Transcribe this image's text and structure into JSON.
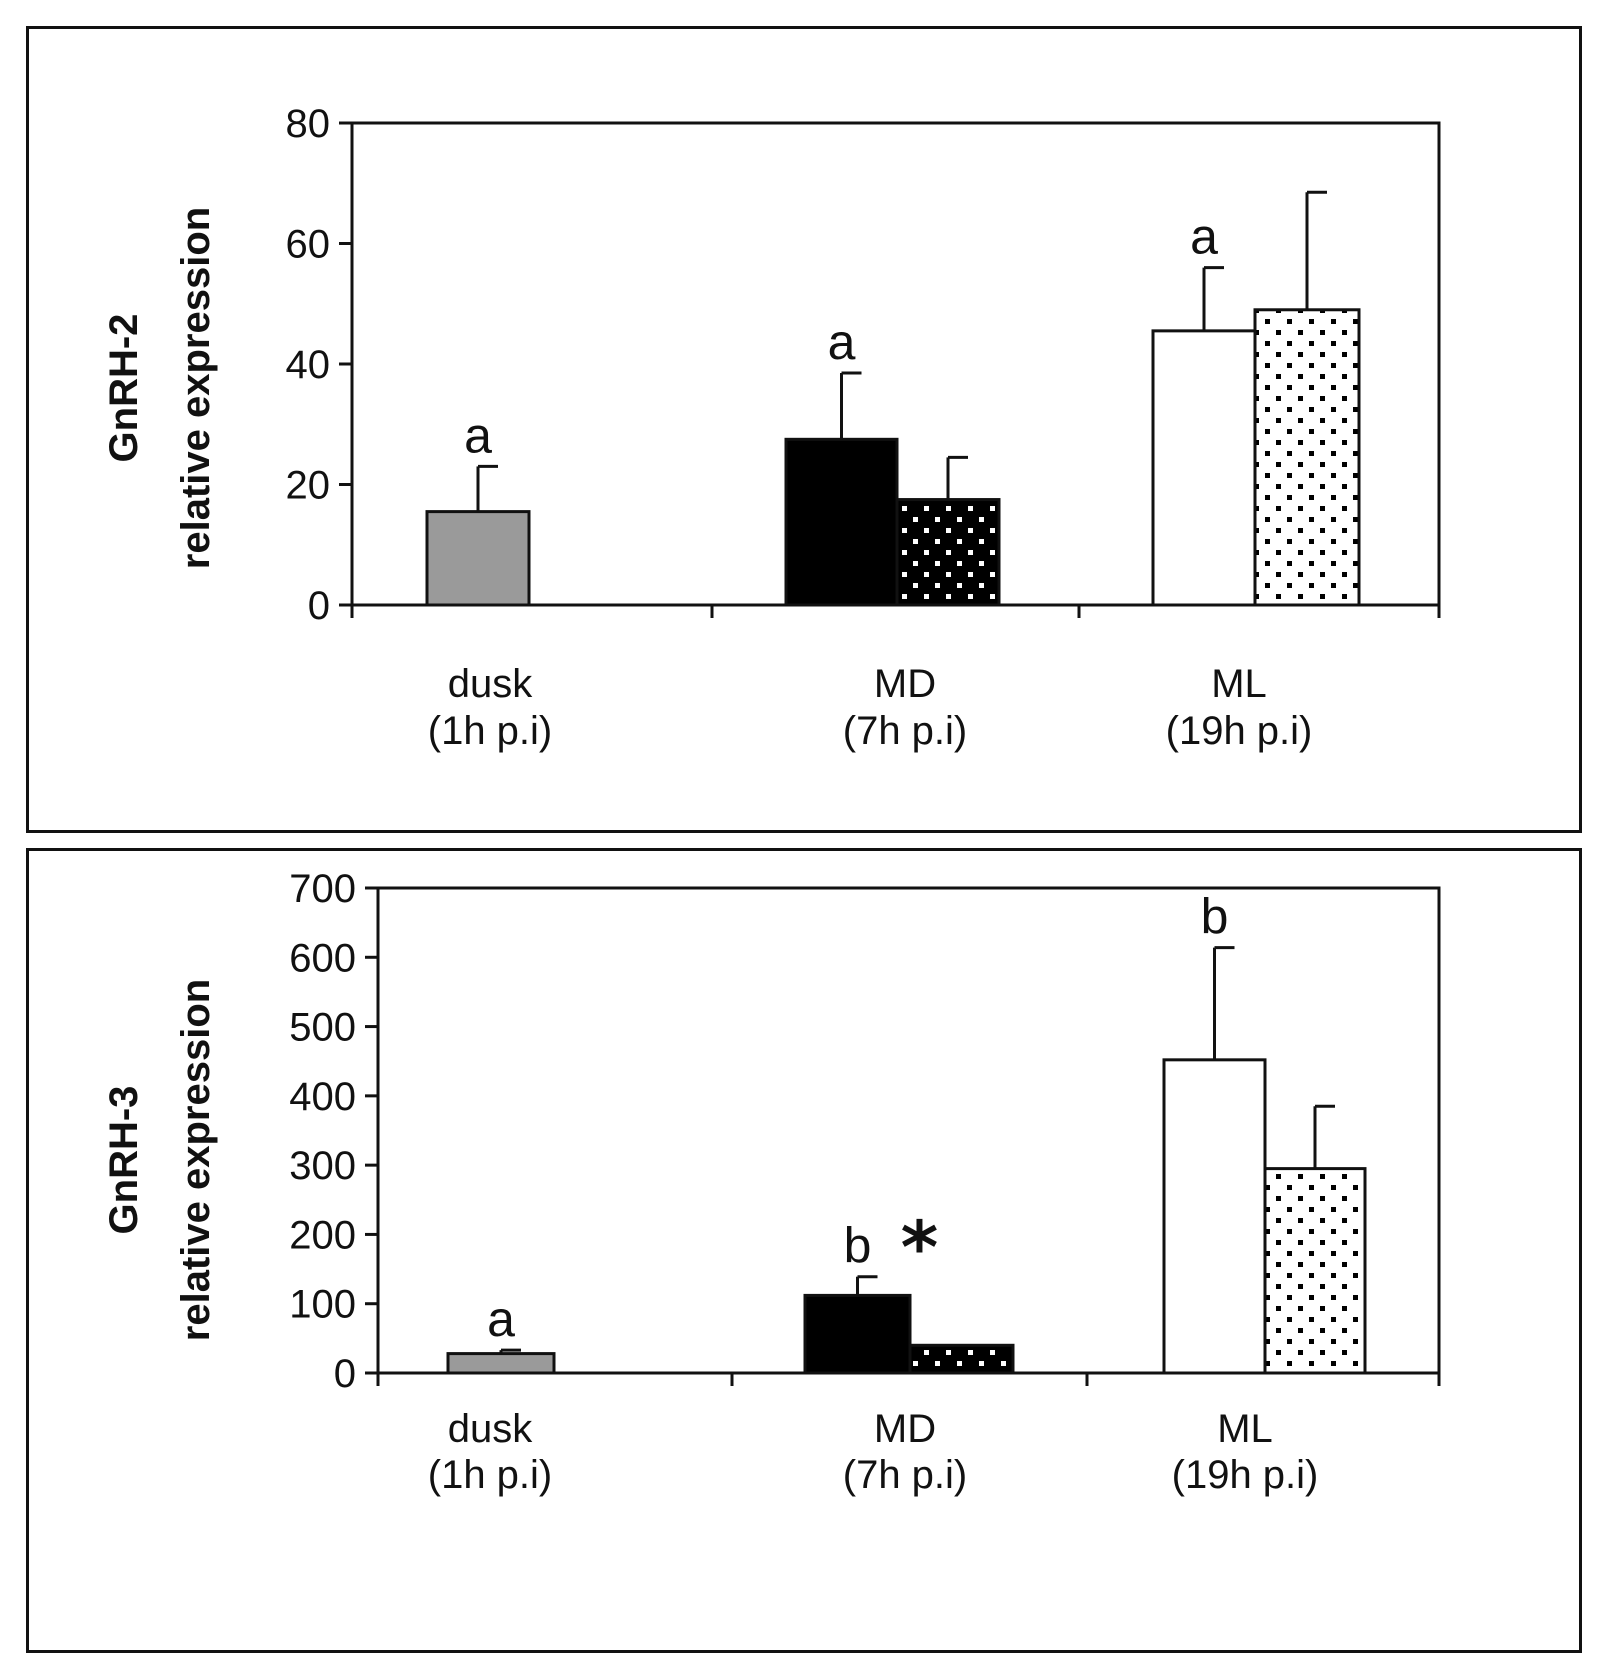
{
  "chart_data": [
    {
      "type": "bar",
      "ylabel_line1": "GnRH-2",
      "ylabel_line2": "relative expression",
      "ylim": [
        0,
        80
      ],
      "yticks": [
        "0",
        "20",
        "40",
        "60",
        "80"
      ],
      "groups": [
        {
          "label_line1": "dusk",
          "label_line2": "(1h p.i)"
        },
        {
          "label_line1": "MD",
          "label_line2": "(7h p.i)"
        },
        {
          "label_line1": "ML",
          "label_line2": "(19h p.i)"
        }
      ],
      "bars": [
        {
          "group": 0,
          "slot": "single",
          "style": "gray",
          "value": 15.5,
          "error": 7.5,
          "annotation": "a"
        },
        {
          "group": 1,
          "slot": "left",
          "style": "black",
          "value": 27.5,
          "error": 11,
          "annotation": "a"
        },
        {
          "group": 1,
          "slot": "right",
          "style": "black-dots",
          "value": 17.5,
          "error": 7
        },
        {
          "group": 2,
          "slot": "left",
          "style": "white",
          "value": 45.5,
          "error": 10.5,
          "annotation": "a"
        },
        {
          "group": 2,
          "slot": "right",
          "style": "white-dots",
          "value": 49,
          "error": 19.5
        }
      ]
    },
    {
      "type": "bar",
      "ylabel_line1": "GnRH-3",
      "ylabel_line2": "relative expression",
      "ylim": [
        0,
        700
      ],
      "yticks": [
        "0",
        "100",
        "200",
        "300",
        "400",
        "500",
        "600",
        "700"
      ],
      "groups": [
        {
          "label_line1": "dusk",
          "label_line2": "(1h p.i)"
        },
        {
          "label_line1": "MD",
          "label_line2": "(7h p.i)"
        },
        {
          "label_line1": "ML",
          "label_line2": "(19h p.i)"
        }
      ],
      "bars": [
        {
          "group": 0,
          "slot": "single",
          "style": "gray",
          "value": 28,
          "error": 5,
          "annotation": "a"
        },
        {
          "group": 1,
          "slot": "left",
          "style": "black",
          "value": 112,
          "error": 27,
          "annotation": "b",
          "marker": "*"
        },
        {
          "group": 1,
          "slot": "right",
          "style": "black-dots",
          "value": 40,
          "error": 0
        },
        {
          "group": 2,
          "slot": "left",
          "style": "white",
          "value": 452,
          "error": 162,
          "annotation": "b"
        },
        {
          "group": 2,
          "slot": "right",
          "style": "white-dots",
          "value": 295,
          "error": 90
        }
      ]
    }
  ]
}
